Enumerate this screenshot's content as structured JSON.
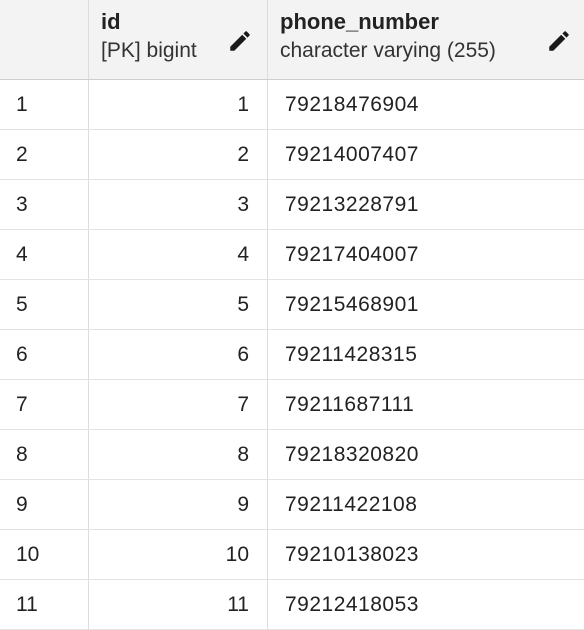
{
  "columns": {
    "id": {
      "name": "id",
      "type": "[PK] bigint",
      "edit_icon": "pencil-icon"
    },
    "phone": {
      "name": "phone_number",
      "type": "character varying (255)",
      "edit_icon": "pencil-icon"
    }
  },
  "rows": [
    {
      "rownum": "1",
      "id": "1",
      "phone": "79218476904"
    },
    {
      "rownum": "2",
      "id": "2",
      "phone": "79214007407"
    },
    {
      "rownum": "3",
      "id": "3",
      "phone": "79213228791"
    },
    {
      "rownum": "4",
      "id": "4",
      "phone": "79217404007"
    },
    {
      "rownum": "5",
      "id": "5",
      "phone": "79215468901"
    },
    {
      "rownum": "6",
      "id": "6",
      "phone": "79211428315"
    },
    {
      "rownum": "7",
      "id": "7",
      "phone": "79211687111"
    },
    {
      "rownum": "8",
      "id": "8",
      "phone": "79218320820"
    },
    {
      "rownum": "9",
      "id": "9",
      "phone": "79211422108"
    },
    {
      "rownum": "10",
      "id": "10",
      "phone": "79210138023"
    },
    {
      "rownum": "11",
      "id": "11",
      "phone": "79212418053"
    }
  ],
  "colors": {
    "header_bg": "#f3f3f3",
    "grid_line": "#dcdcdc",
    "text": "#222222"
  }
}
